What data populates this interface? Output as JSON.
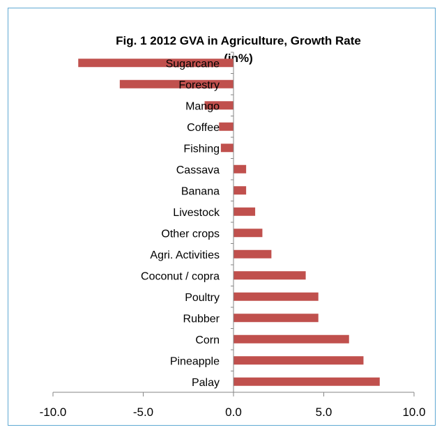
{
  "chart_data": {
    "type": "bar",
    "orientation": "horizontal",
    "title": "Fig. 1 2012 GVA in Agriculture, Growth Rate",
    "subtitle": "(in%)",
    "categories": [
      "Sugarcane",
      "Forestry",
      "Mango",
      "Coffee",
      "Fishing",
      "Cassava",
      "Banana",
      "Livestock",
      "Other crops",
      "Agri. Activities",
      "Coconut / copra",
      "Poultry",
      "Rubber",
      "Corn",
      "Pineapple",
      "Palay"
    ],
    "values": [
      -8.6,
      -6.3,
      -1.6,
      -0.8,
      -0.7,
      0.7,
      0.7,
      1.2,
      1.6,
      2.1,
      4.0,
      4.7,
      4.7,
      6.4,
      7.2,
      8.1
    ],
    "xlim": [
      -10,
      10
    ],
    "x_ticks": [
      "-10.0",
      "-5.0",
      "0.0",
      "5.0",
      "10.0"
    ],
    "x_tick_values": [
      -10,
      -5,
      0,
      5,
      10
    ],
    "xlabel": "",
    "ylabel": "",
    "grid": false,
    "bar_color": "#c0504d",
    "axis_color": "#868686"
  }
}
